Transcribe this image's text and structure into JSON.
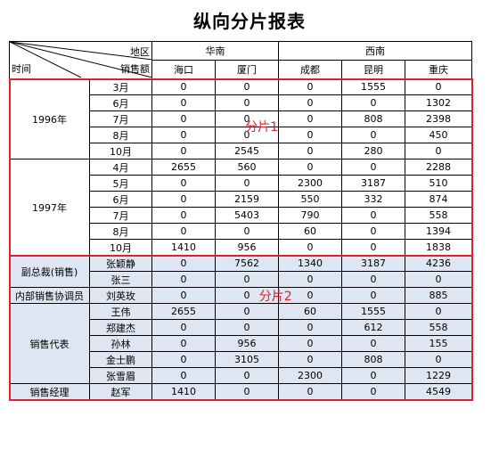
{
  "title": "纵向分片报表",
  "header": {
    "corner": {
      "region_label": "地区",
      "time_label": "时间",
      "sales_label": "销售额"
    },
    "groups": [
      {
        "label": "华南",
        "span": 2
      },
      {
        "label": "西南",
        "span": 3
      }
    ],
    "cities": [
      "海口",
      "厦门",
      "成都",
      "昆明",
      "重庆"
    ]
  },
  "annotations": {
    "slice1": "分片1",
    "slice2": "分片2"
  },
  "section1": [
    {
      "group": "1996年",
      "rows": [
        {
          "label": "3月",
          "values": [
            "0",
            "0",
            "0",
            "1555",
            "0"
          ]
        },
        {
          "label": "6月",
          "values": [
            "0",
            "0",
            "0",
            "0",
            "1302"
          ]
        },
        {
          "label": "7月",
          "values": [
            "0",
            "0",
            "0",
            "808",
            "2398"
          ]
        },
        {
          "label": "8月",
          "values": [
            "0",
            "0",
            "0",
            "0",
            "450"
          ]
        },
        {
          "label": "10月",
          "values": [
            "0",
            "2545",
            "0",
            "280",
            "0"
          ]
        }
      ]
    },
    {
      "group": "1997年",
      "rows": [
        {
          "label": "4月",
          "values": [
            "2655",
            "560",
            "0",
            "0",
            "2288"
          ]
        },
        {
          "label": "5月",
          "values": [
            "0",
            "0",
            "2300",
            "3187",
            "510"
          ]
        },
        {
          "label": "6月",
          "values": [
            "0",
            "2159",
            "550",
            "332",
            "874"
          ]
        },
        {
          "label": "7月",
          "values": [
            "0",
            "5403",
            "790",
            "0",
            "558"
          ]
        },
        {
          "label": "8月",
          "values": [
            "0",
            "0",
            "60",
            "0",
            "1394"
          ]
        },
        {
          "label": "10月",
          "values": [
            "1410",
            "956",
            "0",
            "0",
            "1838"
          ]
        }
      ]
    }
  ],
  "section2": [
    {
      "group": "副总裁(销售)",
      "rows": [
        {
          "label": "张颖静",
          "values": [
            "0",
            "7562",
            "1340",
            "3187",
            "4236"
          ]
        },
        {
          "label": "张三",
          "values": [
            "0",
            "0",
            "0",
            "0",
            "0"
          ]
        }
      ]
    },
    {
      "group": "内部销售协调员",
      "rows": [
        {
          "label": "刘英玫",
          "values": [
            "0",
            "0",
            "0",
            "0",
            "885"
          ]
        }
      ]
    },
    {
      "group": "销售代表",
      "rows": [
        {
          "label": "王伟",
          "values": [
            "2655",
            "0",
            "60",
            "1555",
            "0"
          ]
        },
        {
          "label": "郑建杰",
          "values": [
            "0",
            "0",
            "0",
            "612",
            "558"
          ]
        },
        {
          "label": "孙林",
          "values": [
            "0",
            "956",
            "0",
            "0",
            "155"
          ]
        },
        {
          "label": "金士鹏",
          "values": [
            "0",
            "3105",
            "0",
            "808",
            "0"
          ]
        },
        {
          "label": "张雪眉",
          "values": [
            "0",
            "0",
            "2300",
            "0",
            "1229"
          ]
        }
      ]
    },
    {
      "group": "销售经理",
      "rows": [
        {
          "label": "赵军",
          "values": [
            "1410",
            "0",
            "0",
            "0",
            "4549"
          ]
        }
      ]
    }
  ],
  "colors": {
    "accent_frame": "#e0202a",
    "section2_fill": "#dde6f2"
  }
}
